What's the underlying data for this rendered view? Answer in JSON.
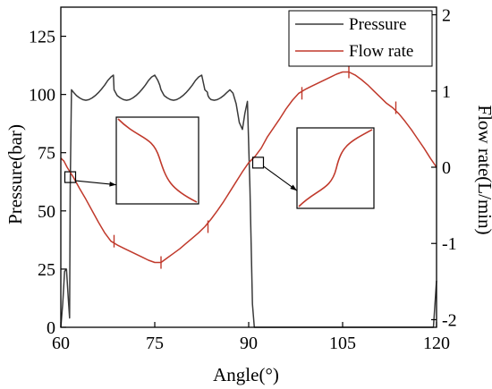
{
  "chart_data": {
    "type": "line",
    "title": "",
    "xlabel": "Angle(°)",
    "ylabel_left": "Pressure(bar)",
    "ylabel_right": "Flow rate(L/min)",
    "xlim": [
      60,
      120
    ],
    "ylim_left": [
      0,
      137.5
    ],
    "ylim_right": [
      -2.1,
      2.1
    ],
    "grid": false,
    "legend_position": "top-right",
    "x_ticks": [
      60,
      75,
      90,
      105,
      120
    ],
    "x_tick_labels": [
      "60",
      "75",
      "90",
      "105",
      "120"
    ],
    "y_left_ticks": [
      0,
      25,
      50,
      75,
      100,
      125
    ],
    "y_left_tick_labels": [
      "0",
      "25",
      "50",
      "75",
      "100",
      "125"
    ],
    "y_right_ticks": [
      -2,
      -1,
      0,
      1,
      2
    ],
    "y_right_tick_labels": [
      "-2",
      "-1",
      "0",
      "1",
      "2"
    ],
    "series": [
      {
        "name": "Pressure",
        "axis": "left",
        "color": "#3a3a3a",
        "x": [
          60.0,
          60.3,
          60.6,
          60.9,
          61.2,
          61.4,
          61.5,
          61.7,
          62.0,
          62.5,
          63.0,
          63.5,
          64.0,
          64.5,
          65.0,
          65.5,
          66.0,
          66.5,
          67.0,
          67.5,
          68.0,
          68.4,
          68.5,
          68.7,
          69.0,
          69.5,
          70.0,
          70.5,
          71.0,
          71.5,
          72.0,
          72.5,
          73.0,
          73.5,
          74.0,
          74.5,
          75.0,
          75.5,
          75.8,
          76.0,
          76.2,
          76.5,
          77.0,
          77.5,
          78.0,
          78.5,
          79.0,
          79.5,
          80.0,
          80.5,
          81.0,
          81.5,
          82.0,
          82.5,
          83.0,
          83.4,
          83.5,
          83.7,
          84.0,
          84.5,
          85.0,
          85.5,
          86.0,
          86.5,
          87.0,
          87.5,
          88.0,
          88.5,
          89.0,
          89.4,
          89.8,
          90.2,
          90.6,
          90.9,
          91.1,
          91.15,
          91.2,
          91.4,
          92.0,
          95.0,
          100.0,
          105.0,
          110.0,
          115.0,
          119.5,
          120.0
        ],
        "y": [
          0.0,
          10.0,
          24.0,
          25.0,
          12.0,
          4.0,
          60.0,
          102.0,
          101.0,
          99.5,
          98.5,
          97.8,
          97.5,
          97.8,
          98.5,
          99.5,
          100.8,
          102.3,
          104.0,
          106.0,
          107.5,
          108.3,
          102.0,
          101.0,
          99.5,
          98.5,
          97.8,
          97.5,
          97.8,
          98.5,
          99.5,
          100.8,
          102.3,
          104.0,
          106.0,
          107.5,
          108.3,
          106.0,
          104.0,
          102.0,
          101.0,
          99.5,
          98.5,
          97.8,
          97.5,
          97.8,
          98.5,
          99.5,
          100.8,
          102.3,
          104.0,
          106.0,
          107.5,
          108.3,
          102.0,
          101.0,
          99.5,
          98.5,
          97.8,
          97.5,
          97.8,
          98.5,
          99.5,
          100.8,
          102.0,
          100.5,
          96.0,
          88.0,
          85.0,
          92.0,
          97.0,
          60.0,
          10.0,
          0.0,
          0.0,
          0.0,
          0.0,
          0.0,
          0.0,
          0.0,
          0.0,
          0.0,
          0.0,
          0.0,
          0.0,
          20.0
        ]
      },
      {
        "name": "Flow rate",
        "axis": "right",
        "color": "#c0392b",
        "x": [
          60.0,
          60.5,
          61.0,
          62.0,
          63.0,
          64.0,
          65.0,
          66.0,
          67.0,
          68.0,
          69.0,
          70.0,
          71.0,
          72.0,
          73.0,
          74.0,
          75.0,
          76.0,
          77.0,
          78.0,
          79.0,
          80.0,
          81.0,
          82.0,
          83.0,
          84.0,
          85.0,
          86.0,
          87.0,
          88.0,
          89.0,
          90.0,
          91.0,
          92.0,
          93.0,
          94.0,
          95.0,
          96.0,
          97.0,
          98.0,
          99.0,
          100.0,
          101.0,
          102.0,
          103.0,
          104.0,
          105.0,
          106.0,
          107.0,
          108.0,
          109.0,
          110.0,
          111.0,
          112.0,
          113.0,
          114.0,
          115.0,
          116.0,
          117.0,
          118.0,
          119.0,
          120.0
        ],
        "y": [
          0.12,
          0.08,
          0.0,
          -0.13,
          -0.28,
          -0.42,
          -0.57,
          -0.72,
          -0.86,
          -0.97,
          -1.02,
          -1.06,
          -1.1,
          -1.14,
          -1.18,
          -1.22,
          -1.25,
          -1.25,
          -1.19,
          -1.13,
          -1.07,
          -1.0,
          -0.93,
          -0.86,
          -0.78,
          -0.68,
          -0.57,
          -0.45,
          -0.32,
          -0.19,
          -0.06,
          0.06,
          0.14,
          0.25,
          0.4,
          0.52,
          0.64,
          0.77,
          0.88,
          0.97,
          1.02,
          1.06,
          1.1,
          1.14,
          1.18,
          1.22,
          1.25,
          1.25,
          1.21,
          1.15,
          1.08,
          1.0,
          0.92,
          0.84,
          0.78,
          0.7,
          0.6,
          0.49,
          0.37,
          0.25,
          0.12,
          0.0
        ]
      }
    ],
    "insets": [
      {
        "marker_x": 61.5,
        "marker_y_right": -0.13,
        "curve": "falling"
      },
      {
        "marker_x": 91.5,
        "marker_y_right": 0.06,
        "curve": "rising"
      }
    ]
  },
  "legend": {
    "pressure_label": "Pressure",
    "flow_label": "Flow rate"
  }
}
